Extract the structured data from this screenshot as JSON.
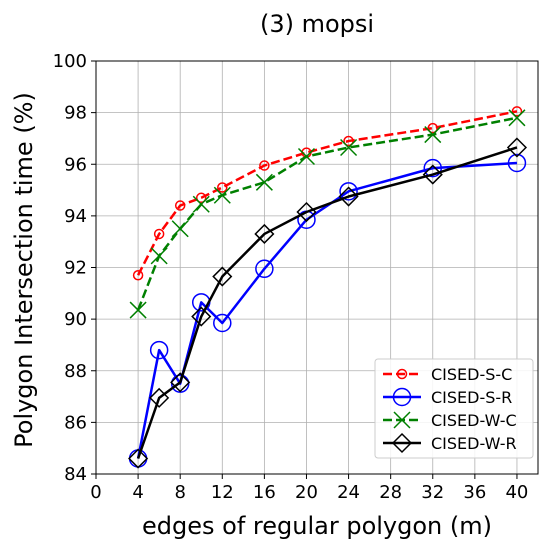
{
  "chart_data": {
    "type": "line",
    "title": "(3) mopsi",
    "xlabel": "edges of regular polygon (m)",
    "ylabel": "Polygon Intersection time (%)",
    "xlim": [
      0,
      42
    ],
    "ylim": [
      84,
      100
    ],
    "xticks": [
      0,
      4,
      8,
      12,
      16,
      20,
      24,
      28,
      32,
      36,
      40
    ],
    "yticks": [
      84,
      86,
      88,
      90,
      92,
      94,
      96,
      98,
      100
    ],
    "grid": true,
    "legend_position": "lower-right",
    "x": [
      4,
      6,
      8,
      10,
      12,
      16,
      20,
      24,
      32,
      40
    ],
    "series": [
      {
        "name": "CISED-S-C",
        "color": "#ff0000",
        "dash": "dashed",
        "marker": "small-circle",
        "values": [
          91.7,
          93.3,
          94.4,
          94.7,
          95.1,
          95.95,
          96.45,
          96.9,
          97.4,
          98.05
        ]
      },
      {
        "name": "CISED-S-R",
        "color": "#0000ff",
        "dash": "solid",
        "marker": "large-circle",
        "values": [
          84.6,
          88.8,
          87.5,
          90.65,
          89.85,
          91.95,
          93.85,
          94.95,
          95.85,
          96.05
        ]
      },
      {
        "name": "CISED-W-C",
        "color": "#008000",
        "dash": "dashed",
        "marker": "x",
        "values": [
          90.35,
          92.45,
          93.5,
          94.45,
          94.8,
          95.3,
          96.3,
          96.65,
          97.15,
          97.8
        ]
      },
      {
        "name": "CISED-W-R",
        "color": "#000000",
        "dash": "solid",
        "marker": "diamond",
        "values": [
          84.6,
          86.95,
          87.55,
          90.1,
          91.65,
          93.3,
          94.15,
          94.75,
          95.6,
          96.65
        ]
      }
    ]
  }
}
